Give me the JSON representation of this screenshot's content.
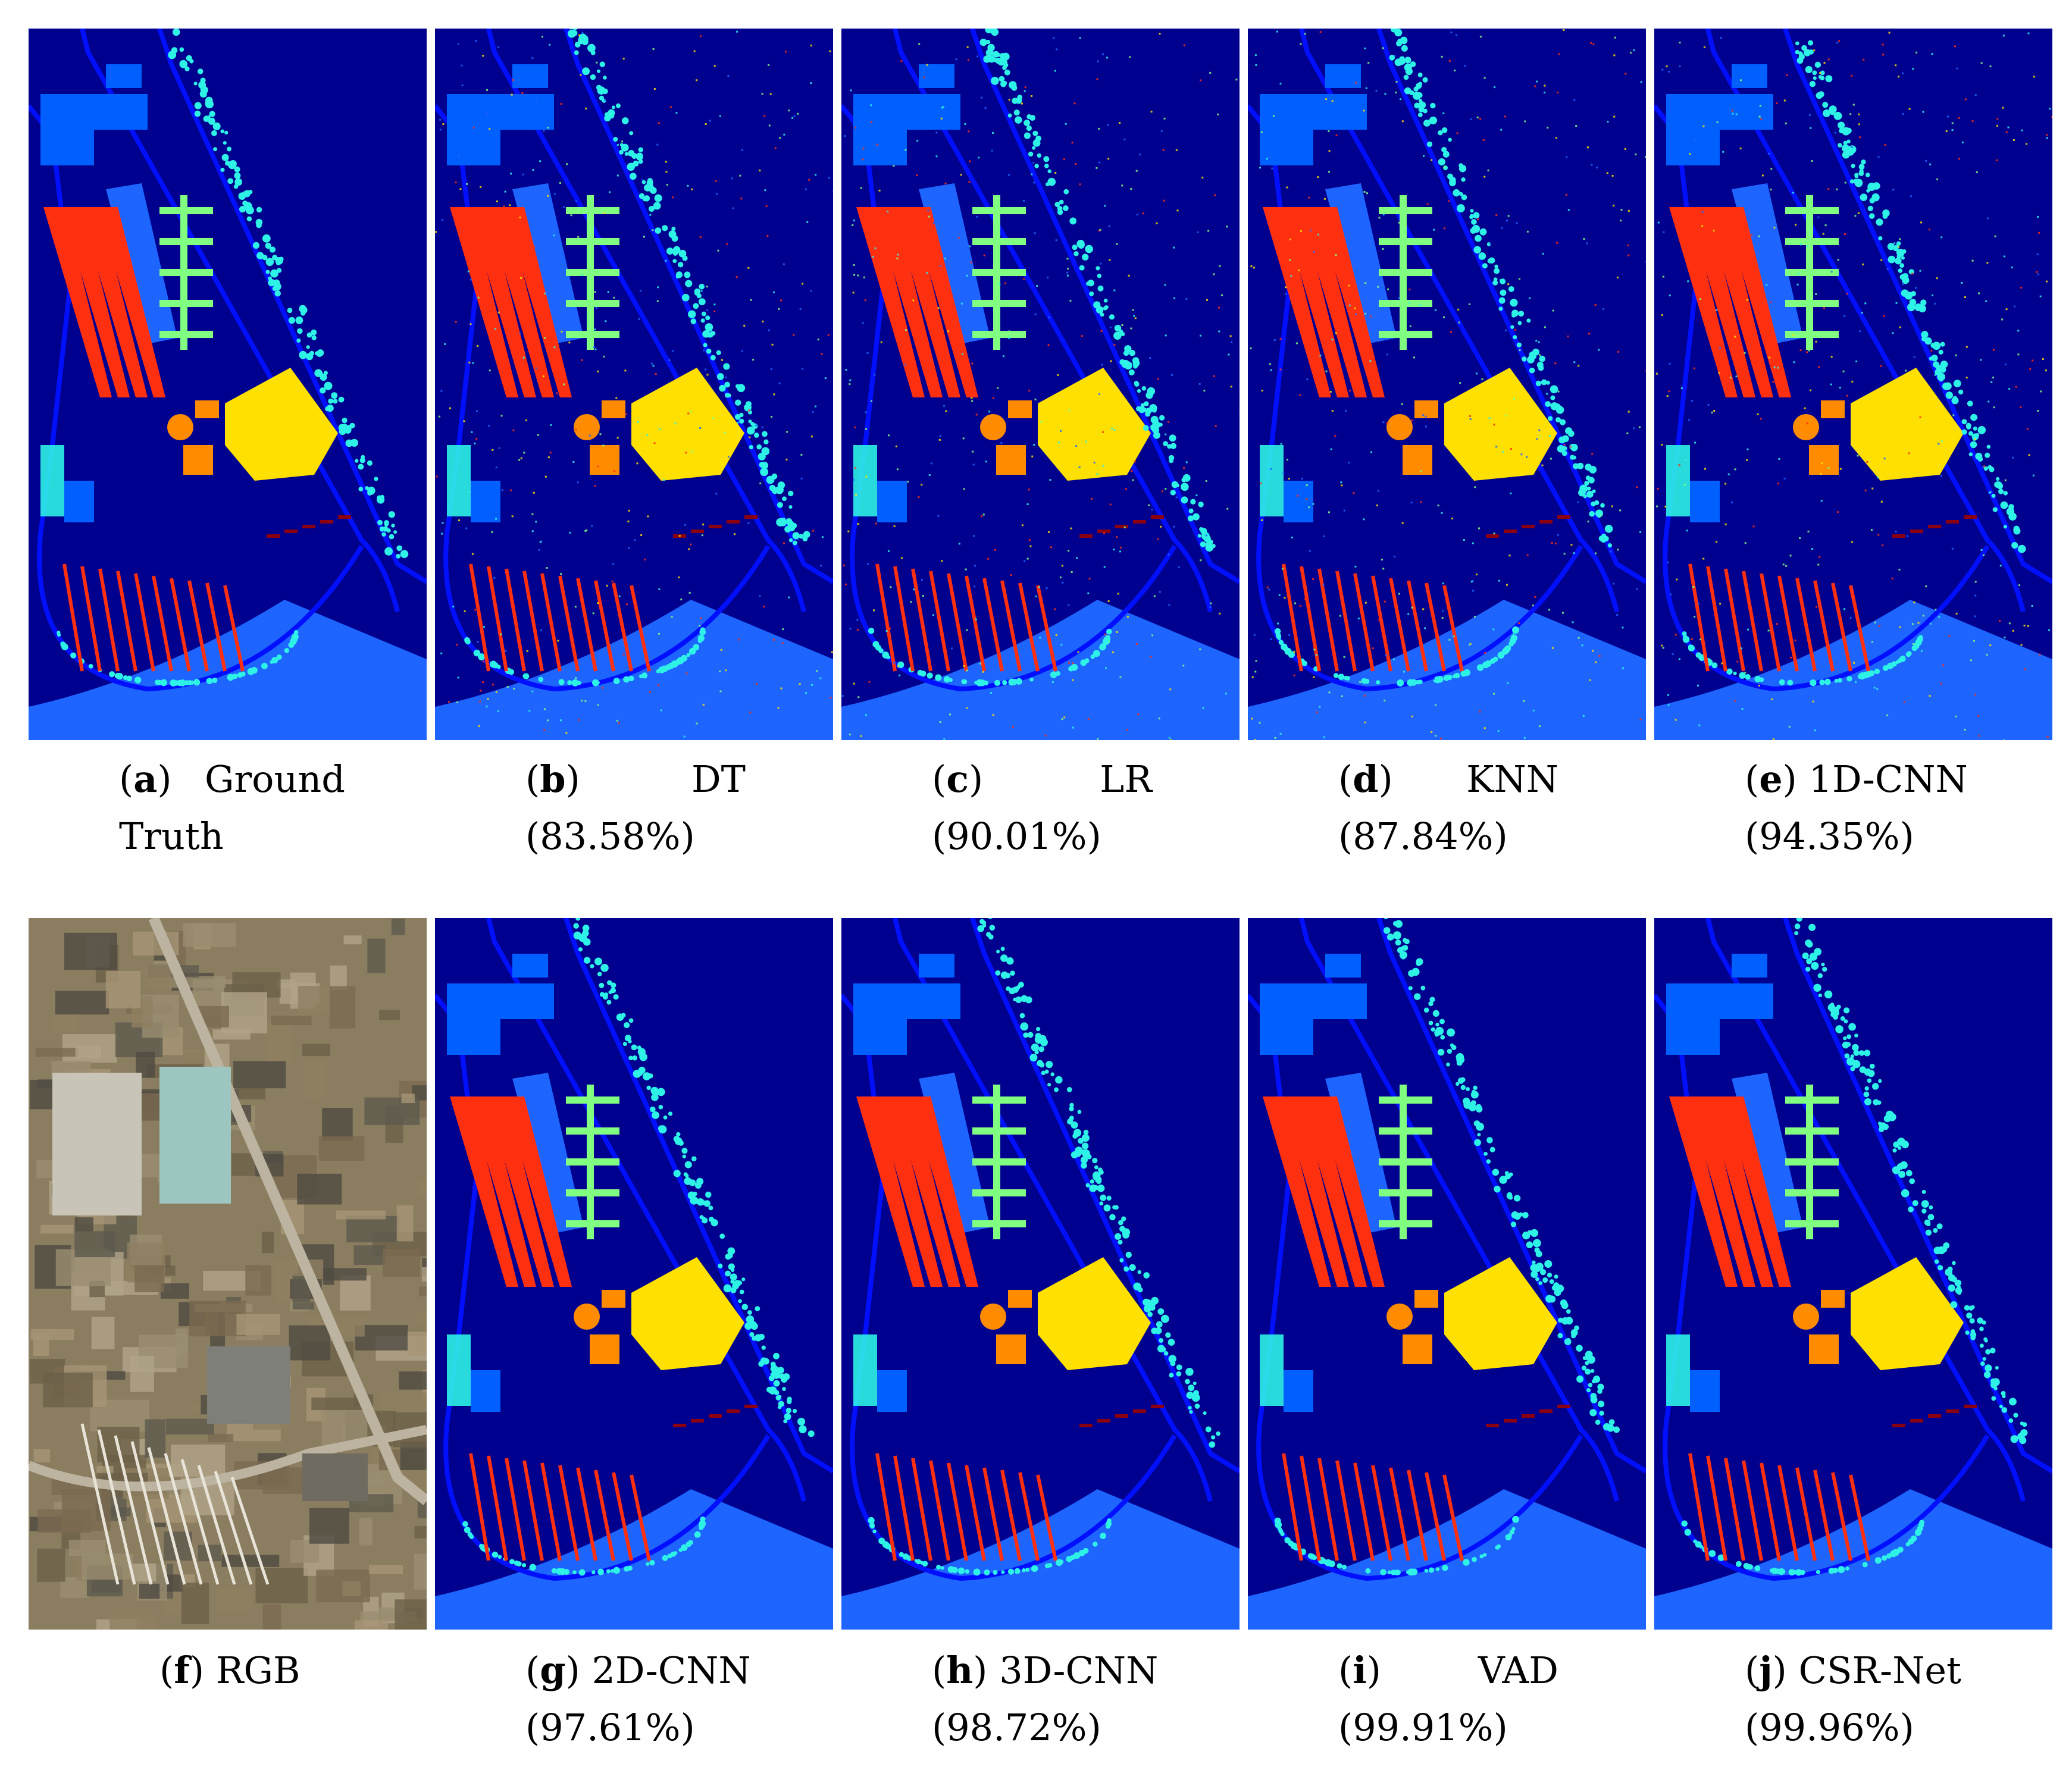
{
  "panels": [
    {
      "letter": "a",
      "name": "Ground Truth",
      "line1_name": "Ground",
      "line2": "Truth",
      "style": "clean"
    },
    {
      "letter": "b",
      "name": "DT",
      "line2": "(83.58%)",
      "style": "noisy"
    },
    {
      "letter": "c",
      "name": "LR",
      "line2": "(90.01%)",
      "style": "noisy"
    },
    {
      "letter": "d",
      "name": "KNN",
      "line2": "(87.84%)",
      "style": "noisy"
    },
    {
      "letter": "e",
      "name": "1D-CNN",
      "line2": "(94.35%)",
      "style": "noisy"
    },
    {
      "letter": "f",
      "name": "RGB",
      "line2": "",
      "style": "rgb"
    },
    {
      "letter": "g",
      "name": "2D-CNN",
      "line2": "(97.61%)",
      "style": "clean"
    },
    {
      "letter": "h",
      "name": "3D-CNN",
      "line2": "(98.72%)",
      "style": "clean"
    },
    {
      "letter": "i",
      "name": "VAD",
      "line2": "(99.91%)",
      "style": "clean"
    },
    {
      "letter": "j",
      "name": "CSR-Net",
      "line2": "(99.96%)",
      "style": "clean"
    }
  ],
  "colors": {
    "background": "#00008f",
    "road": "#0010ff",
    "meadow": "#1e64ff",
    "building_blue": "#0060ff",
    "tree_cyan": "#2ef2e6",
    "red_bitumen": "#ff3010",
    "green_gravel": "#80ff80",
    "yellow_soil": "#ffe000",
    "orange": "#ff8c00",
    "dark_red": "#8a0010",
    "aerial": "#8a7d60"
  }
}
